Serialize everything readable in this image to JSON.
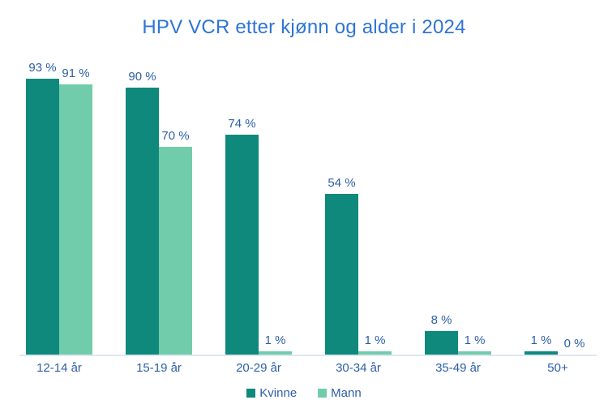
{
  "page": {
    "background_color": "#ffffff"
  },
  "chart_data": {
    "type": "bar",
    "title": "HPV VCR etter kjønn og alder i 2024",
    "categories": [
      "12-14 år",
      "15-19 år",
      "20-29 år",
      "30-34 år",
      "35-49 år",
      "50+"
    ],
    "series": [
      {
        "name": "Kvinne",
        "color": "#0E897C",
        "values": [
          93,
          90,
          74,
          54,
          8,
          1
        ]
      },
      {
        "name": "Mann",
        "color": "#71CCAB",
        "values": [
          91,
          70,
          1,
          1,
          1,
          0
        ]
      }
    ],
    "value_suffix": " %",
    "value_labels": [
      "93 %",
      "91 %",
      "90 %",
      "70 %",
      "74 %",
      "1 %",
      "54 %",
      "1 %",
      "8 %",
      "1 %",
      "1 %",
      "0 %"
    ],
    "xlabel": "",
    "ylabel": "",
    "ylim": [
      0,
      100
    ],
    "grid": false,
    "y_axis_visible": false,
    "legend_position": "bottom",
    "title_color": "#2E75D6",
    "text_color": "#2E5FA6",
    "axis_line_color": "#DEE7F0"
  }
}
